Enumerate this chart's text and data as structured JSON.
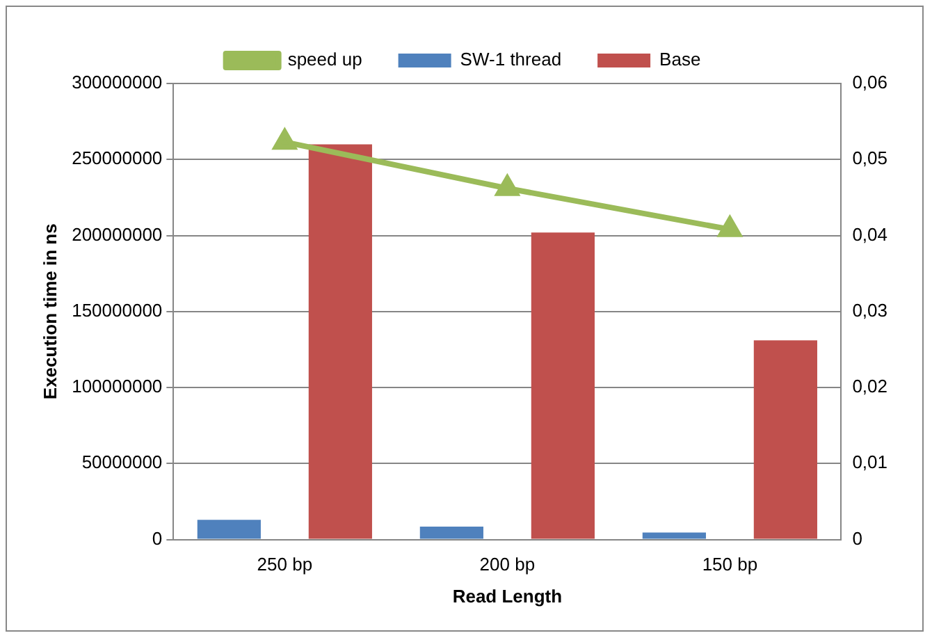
{
  "chart_data": {
    "type": "bar",
    "xlabel": "Read Length",
    "ylabel": "Execution time in ns",
    "categories": [
      "250 bp",
      "200 bp",
      "150 bp"
    ],
    "series": [
      {
        "name": "SW-1 thread",
        "color": "#4f81bd",
        "values": [
          13000000,
          8500000,
          4600000
        ]
      },
      {
        "name": "Base",
        "color": "#c0504d",
        "values": [
          260000000,
          202000000,
          131000000
        ]
      },
      {
        "name": "speed up",
        "type": "line",
        "axis": "y2",
        "color": "#9bbb59",
        "values": [
          0.0523,
          0.0462,
          0.0408
        ]
      }
    ],
    "ylim": [
      0,
      300000000
    ],
    "yticks": [
      0,
      50000000,
      100000000,
      150000000,
      200000000,
      250000000,
      300000000
    ],
    "y2lim": [
      0,
      0.06
    ],
    "y2ticks": [
      0,
      {
        "value": 0.01,
        "label": "0,01"
      },
      {
        "value": 0.02,
        "label": "0,02"
      },
      {
        "value": 0.03,
        "label": "0,03"
      },
      {
        "value": 0.04,
        "label": "0,04"
      },
      {
        "value": 0.05,
        "label": "0,05"
      },
      {
        "value": 0.06,
        "label": "0,06"
      }
    ],
    "grid": "y",
    "legend": "top",
    "marker": "triangle",
    "line_style": "solid"
  }
}
